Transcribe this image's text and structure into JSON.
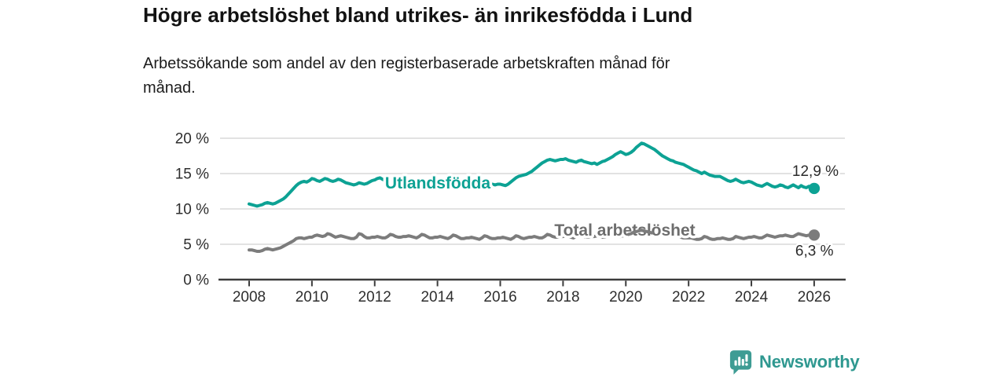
{
  "branding": {
    "name": "Newsworthy",
    "icon_color": "#3E9C94",
    "text_color": "#2F9890"
  },
  "chart_data": {
    "type": "line",
    "title": "Högre arbetslöshet bland utrikes- än inrikesfödda i Lund",
    "subtitle_line1": "Arbetssökande som andel av den registerbaserade arbetskraften månad för",
    "subtitle_line2": "månad.",
    "x_start_year": 2008,
    "points_per_year": 12,
    "xlim": [
      2007.1,
      2026.95
    ],
    "ylim": [
      0,
      20
    ],
    "grid": true,
    "legend": "inline-labels-on-line",
    "xtick_years": [
      2008,
      2010,
      2012,
      2014,
      2016,
      2018,
      2020,
      2022,
      2024,
      2026
    ],
    "xtick_labels": [
      "2008",
      "2010",
      "2012",
      "2014",
      "2016",
      "2018",
      "2020",
      "2022",
      "2024",
      "2026"
    ],
    "ytick_values": [
      0,
      5,
      10,
      15,
      20
    ],
    "ytick_labels": [
      "0 %",
      "5 %",
      "10 %",
      "15 %",
      "20 %"
    ],
    "colors": {
      "grid": "#D8D8D8",
      "axis": "#3C3C3C",
      "tick_text": "#2E2E2E"
    },
    "series": [
      {
        "name": "Utlandsfödda",
        "color": "#0DA294",
        "end_label": "12,9 %",
        "end_value": 12.9,
        "values": [
          10.7,
          10.6,
          10.5,
          10.4,
          10.5,
          10.6,
          10.8,
          10.9,
          10.8,
          10.7,
          10.8,
          11.0,
          11.2,
          11.4,
          11.7,
          12.1,
          12.5,
          12.9,
          13.3,
          13.6,
          13.8,
          13.9,
          13.8,
          14.0,
          14.3,
          14.2,
          14.0,
          13.9,
          14.1,
          14.3,
          14.2,
          14.0,
          13.9,
          14.0,
          14.2,
          14.1,
          13.9,
          13.7,
          13.6,
          13.5,
          13.4,
          13.5,
          13.7,
          13.6,
          13.5,
          13.6,
          13.8,
          14.0,
          14.1,
          14.3,
          14.4,
          14.2,
          14.0,
          13.9,
          14.1,
          14.2,
          14.0,
          13.8,
          13.9,
          14.0,
          13.9,
          13.8,
          13.7,
          13.6,
          13.7,
          13.8,
          14.0,
          13.9,
          13.8,
          13.7,
          13.8,
          13.9,
          13.8,
          13.7,
          13.6,
          13.7,
          13.8,
          13.9,
          14.0,
          13.9,
          13.7,
          13.6,
          13.7,
          13.8,
          13.7,
          13.6,
          13.5,
          13.6,
          13.7,
          13.8,
          13.9,
          13.8,
          13.6,
          13.5,
          13.4,
          13.5,
          13.5,
          13.4,
          13.3,
          13.5,
          13.8,
          14.1,
          14.4,
          14.6,
          14.7,
          14.8,
          14.9,
          15.1,
          15.3,
          15.6,
          15.9,
          16.2,
          16.5,
          16.7,
          16.9,
          17.0,
          16.9,
          16.8,
          16.9,
          17.0,
          17.0,
          17.1,
          16.9,
          16.8,
          16.7,
          16.6,
          16.8,
          16.9,
          16.7,
          16.6,
          16.5,
          16.4,
          16.5,
          16.3,
          16.5,
          16.7,
          16.8,
          17.0,
          17.2,
          17.4,
          17.7,
          17.9,
          18.1,
          17.9,
          17.7,
          17.8,
          18.0,
          18.3,
          18.7,
          19.0,
          19.3,
          19.2,
          19.0,
          18.8,
          18.6,
          18.4,
          18.1,
          17.8,
          17.5,
          17.3,
          17.1,
          16.9,
          16.8,
          16.6,
          16.5,
          16.4,
          16.3,
          16.1,
          15.9,
          15.7,
          15.5,
          15.4,
          15.2,
          15.0,
          15.2,
          15.0,
          14.8,
          14.7,
          14.6,
          14.6,
          14.6,
          14.4,
          14.2,
          14.0,
          13.9,
          14.0,
          14.2,
          14.0,
          13.8,
          13.7,
          13.8,
          13.9,
          13.8,
          13.6,
          13.4,
          13.3,
          13.2,
          13.4,
          13.6,
          13.4,
          13.2,
          13.1,
          13.2,
          13.4,
          13.3,
          13.1,
          13.0,
          13.2,
          13.4,
          13.2,
          13.0,
          13.3,
          13.1,
          13.0,
          13.2,
          13.1,
          12.9
        ]
      },
      {
        "name": "Total arbetslöshet",
        "color": "#7C7C7C",
        "label_color": "#6D6D6D",
        "end_label": "6,3 %",
        "end_value": 6.3,
        "values": [
          4.2,
          4.2,
          4.1,
          4.0,
          4.0,
          4.1,
          4.3,
          4.4,
          4.3,
          4.2,
          4.3,
          4.4,
          4.5,
          4.7,
          4.9,
          5.1,
          5.3,
          5.5,
          5.8,
          5.9,
          5.9,
          5.8,
          5.9,
          6.0,
          6.0,
          6.2,
          6.3,
          6.2,
          6.1,
          6.2,
          6.5,
          6.4,
          6.2,
          6.0,
          6.1,
          6.2,
          6.1,
          6.0,
          5.9,
          5.8,
          5.8,
          6.0,
          6.5,
          6.4,
          6.1,
          5.9,
          5.9,
          6.0,
          6.0,
          6.1,
          6.0,
          5.9,
          5.9,
          6.1,
          6.4,
          6.3,
          6.1,
          6.0,
          6.0,
          6.1,
          6.1,
          6.2,
          6.1,
          6.0,
          5.9,
          6.1,
          6.4,
          6.3,
          6.1,
          5.9,
          5.9,
          6.0,
          6.0,
          6.1,
          6.0,
          5.9,
          5.8,
          6.0,
          6.3,
          6.2,
          6.0,
          5.8,
          5.8,
          5.9,
          5.9,
          6.0,
          5.9,
          5.8,
          5.7,
          5.9,
          6.2,
          6.1,
          5.9,
          5.8,
          5.8,
          5.9,
          5.9,
          6.0,
          5.9,
          5.8,
          5.7,
          5.9,
          6.2,
          6.1,
          5.9,
          5.8,
          5.9,
          6.0,
          6.0,
          6.1,
          6.0,
          5.9,
          5.9,
          6.1,
          6.4,
          6.3,
          6.1,
          6.0,
          6.0,
          6.1,
          6.1,
          6.2,
          6.1,
          6.0,
          5.9,
          6.1,
          6.4,
          6.3,
          6.1,
          6.0,
          6.0,
          6.1,
          6.1,
          6.2,
          6.1,
          6.0,
          6.0,
          6.2,
          6.5,
          6.4,
          6.2,
          6.1,
          6.1,
          6.2,
          6.3,
          6.4,
          6.5,
          6.7,
          6.8,
          6.9,
          7.0,
          6.9,
          6.8,
          6.7,
          6.6,
          6.5,
          6.5,
          6.4,
          6.3,
          6.2,
          6.1,
          6.2,
          6.4,
          6.3,
          6.1,
          6.0,
          5.9,
          5.9,
          5.9,
          5.9,
          5.8,
          5.7,
          5.7,
          5.8,
          6.1,
          6.0,
          5.8,
          5.7,
          5.7,
          5.8,
          5.8,
          5.9,
          5.8,
          5.7,
          5.7,
          5.8,
          6.1,
          6.0,
          5.9,
          5.8,
          5.9,
          6.0,
          6.0,
          6.1,
          6.0,
          5.9,
          5.9,
          6.1,
          6.3,
          6.2,
          6.1,
          6.0,
          6.1,
          6.2,
          6.2,
          6.3,
          6.2,
          6.1,
          6.1,
          6.3,
          6.5,
          6.4,
          6.3,
          6.2,
          6.3,
          6.4,
          6.3
        ]
      }
    ]
  }
}
